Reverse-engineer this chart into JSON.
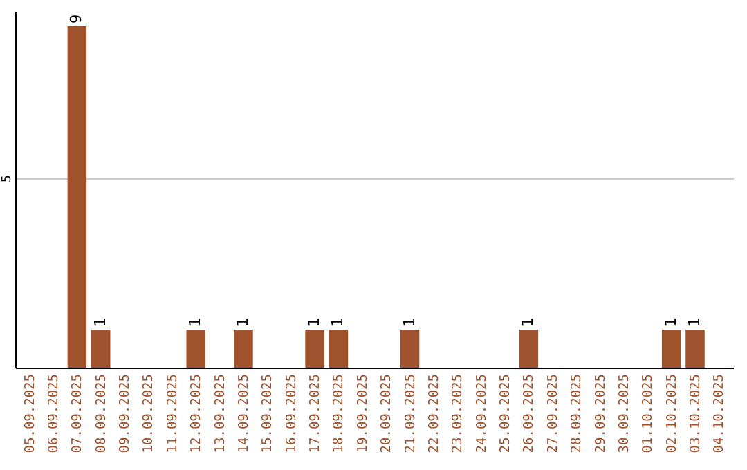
{
  "chart_data": {
    "type": "bar",
    "categories": [
      "05.09.2025",
      "06.09.2025",
      "07.09.2025",
      "08.09.2025",
      "09.09.2025",
      "10.09.2025",
      "11.09.2025",
      "12.09.2025",
      "13.09.2025",
      "14.09.2025",
      "15.09.2025",
      "16.09.2025",
      "17.09.2025",
      "18.09.2025",
      "19.09.2025",
      "20.09.2025",
      "21.09.2025",
      "22.09.2025",
      "23.09.2025",
      "24.09.2025",
      "25.09.2025",
      "26.09.2025",
      "27.09.2025",
      "28.09.2025",
      "29.09.2025",
      "30.09.2025",
      "01.10.2025",
      "02.10.2025",
      "03.10.2025",
      "04.10.2025"
    ],
    "values": [
      0,
      0,
      9,
      1,
      0,
      0,
      0,
      1,
      0,
      1,
      0,
      0,
      1,
      1,
      0,
      0,
      1,
      0,
      0,
      0,
      0,
      1,
      0,
      0,
      0,
      0,
      0,
      1,
      1,
      0
    ],
    "value_labels": [
      null,
      null,
      "9",
      "1",
      null,
      null,
      null,
      "1",
      null,
      "1",
      null,
      null,
      "1",
      "1",
      null,
      null,
      "1",
      null,
      null,
      null,
      null,
      "1",
      null,
      null,
      null,
      null,
      null,
      "1",
      "1",
      null
    ],
    "color": "#a0522d",
    "ylim": [
      0,
      9.4
    ],
    "yticks": [
      5
    ],
    "grid": "y"
  }
}
